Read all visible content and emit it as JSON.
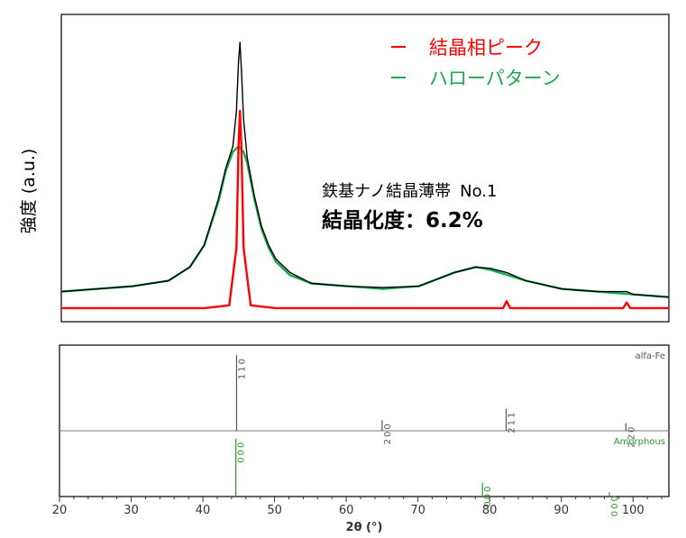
{
  "colors": {
    "measured": "#000000",
    "crystal": "#ff0000",
    "halo": "#1aab50",
    "ref_crystal": "#555555",
    "ref_amorphous": "#2a9a2a"
  },
  "chart_data": [
    {
      "type": "line",
      "ylabel": "強度 (a.u.)",
      "xlim": [
        20,
        105
      ],
      "legend_position": "top-right",
      "series": [
        {
          "name": "結晶相ピーク",
          "color": "#ff0000",
          "x": [
            20,
            40,
            43.5,
            44.5,
            44.8,
            45.0,
            45.2,
            45.5,
            46.5,
            50,
            65,
            81.8,
            82.3,
            82.8,
            98.6,
            99.1,
            99.6,
            105
          ],
          "y": [
            0.03,
            0.03,
            0.04,
            0.25,
            0.62,
            0.75,
            0.62,
            0.25,
            0.04,
            0.03,
            0.03,
            0.03,
            0.055,
            0.03,
            0.03,
            0.05,
            0.03,
            0.03
          ]
        },
        {
          "name": "ハローパターン",
          "color": "#1aab50",
          "x": [
            20,
            30,
            35,
            38,
            40,
            42,
            43,
            44,
            44.8,
            45.5,
            46,
            47,
            48,
            49,
            50,
            52,
            55,
            60,
            65,
            70,
            75,
            78,
            80,
            85,
            90,
            95,
            100,
            105
          ],
          "y": [
            0.09,
            0.11,
            0.13,
            0.18,
            0.26,
            0.42,
            0.53,
            0.6,
            0.62,
            0.6,
            0.56,
            0.43,
            0.32,
            0.25,
            0.2,
            0.15,
            0.12,
            0.11,
            0.1,
            0.11,
            0.16,
            0.18,
            0.17,
            0.13,
            0.1,
            0.09,
            0.08,
            0.07
          ]
        },
        {
          "name": "",
          "color": "#000000",
          "x": [
            20,
            30,
            35,
            38,
            40,
            42,
            43,
            44,
            44.5,
            44.8,
            45.0,
            45.2,
            45.5,
            46,
            47,
            48,
            49,
            50,
            52,
            55,
            60,
            65,
            70,
            75,
            78,
            80,
            82.3,
            85,
            90,
            95,
            99.1,
            100,
            105
          ],
          "y": [
            0.09,
            0.11,
            0.13,
            0.18,
            0.26,
            0.43,
            0.54,
            0.62,
            0.75,
            0.93,
            1.0,
            0.9,
            0.72,
            0.58,
            0.44,
            0.33,
            0.26,
            0.21,
            0.16,
            0.12,
            0.11,
            0.105,
            0.11,
            0.16,
            0.18,
            0.175,
            0.16,
            0.13,
            0.1,
            0.09,
            0.09,
            0.08,
            0.07
          ]
        }
      ],
      "annotations": {
        "sample": "鉄基ナノ結晶薄帯",
        "sample_no": "No.1",
        "crystallinity": "結晶化度：6.2%"
      }
    },
    {
      "type": "bar",
      "xlabel": "2θ (°)",
      "xlim": [
        20,
        105
      ],
      "xticks": [
        20,
        30,
        40,
        50,
        60,
        70,
        80,
        90,
        100
      ],
      "phases": [
        {
          "name": "alfa-Fe",
          "color": "#555555",
          "peaks": [
            {
              "x": 44.7,
              "intensity": 1.0,
              "hkl": "110"
            },
            {
              "x": 65.0,
              "intensity": 0.14,
              "hkl": "200"
            },
            {
              "x": 82.3,
              "intensity": 0.29,
              "hkl": "211"
            },
            {
              "x": 99.0,
              "intensity": 0.1,
              "hkl": "220"
            }
          ]
        },
        {
          "name": "Amorphous",
          "color": "#2a9a2a",
          "peaks": [
            {
              "x": 44.6,
              "intensity": 0.92,
              "hkl": "000"
            },
            {
              "x": 79.0,
              "intensity": 0.22,
              "hkl": "000"
            },
            {
              "x": 96.7,
              "intensity": 0.07,
              "hkl": "000"
            }
          ]
        }
      ]
    }
  ]
}
